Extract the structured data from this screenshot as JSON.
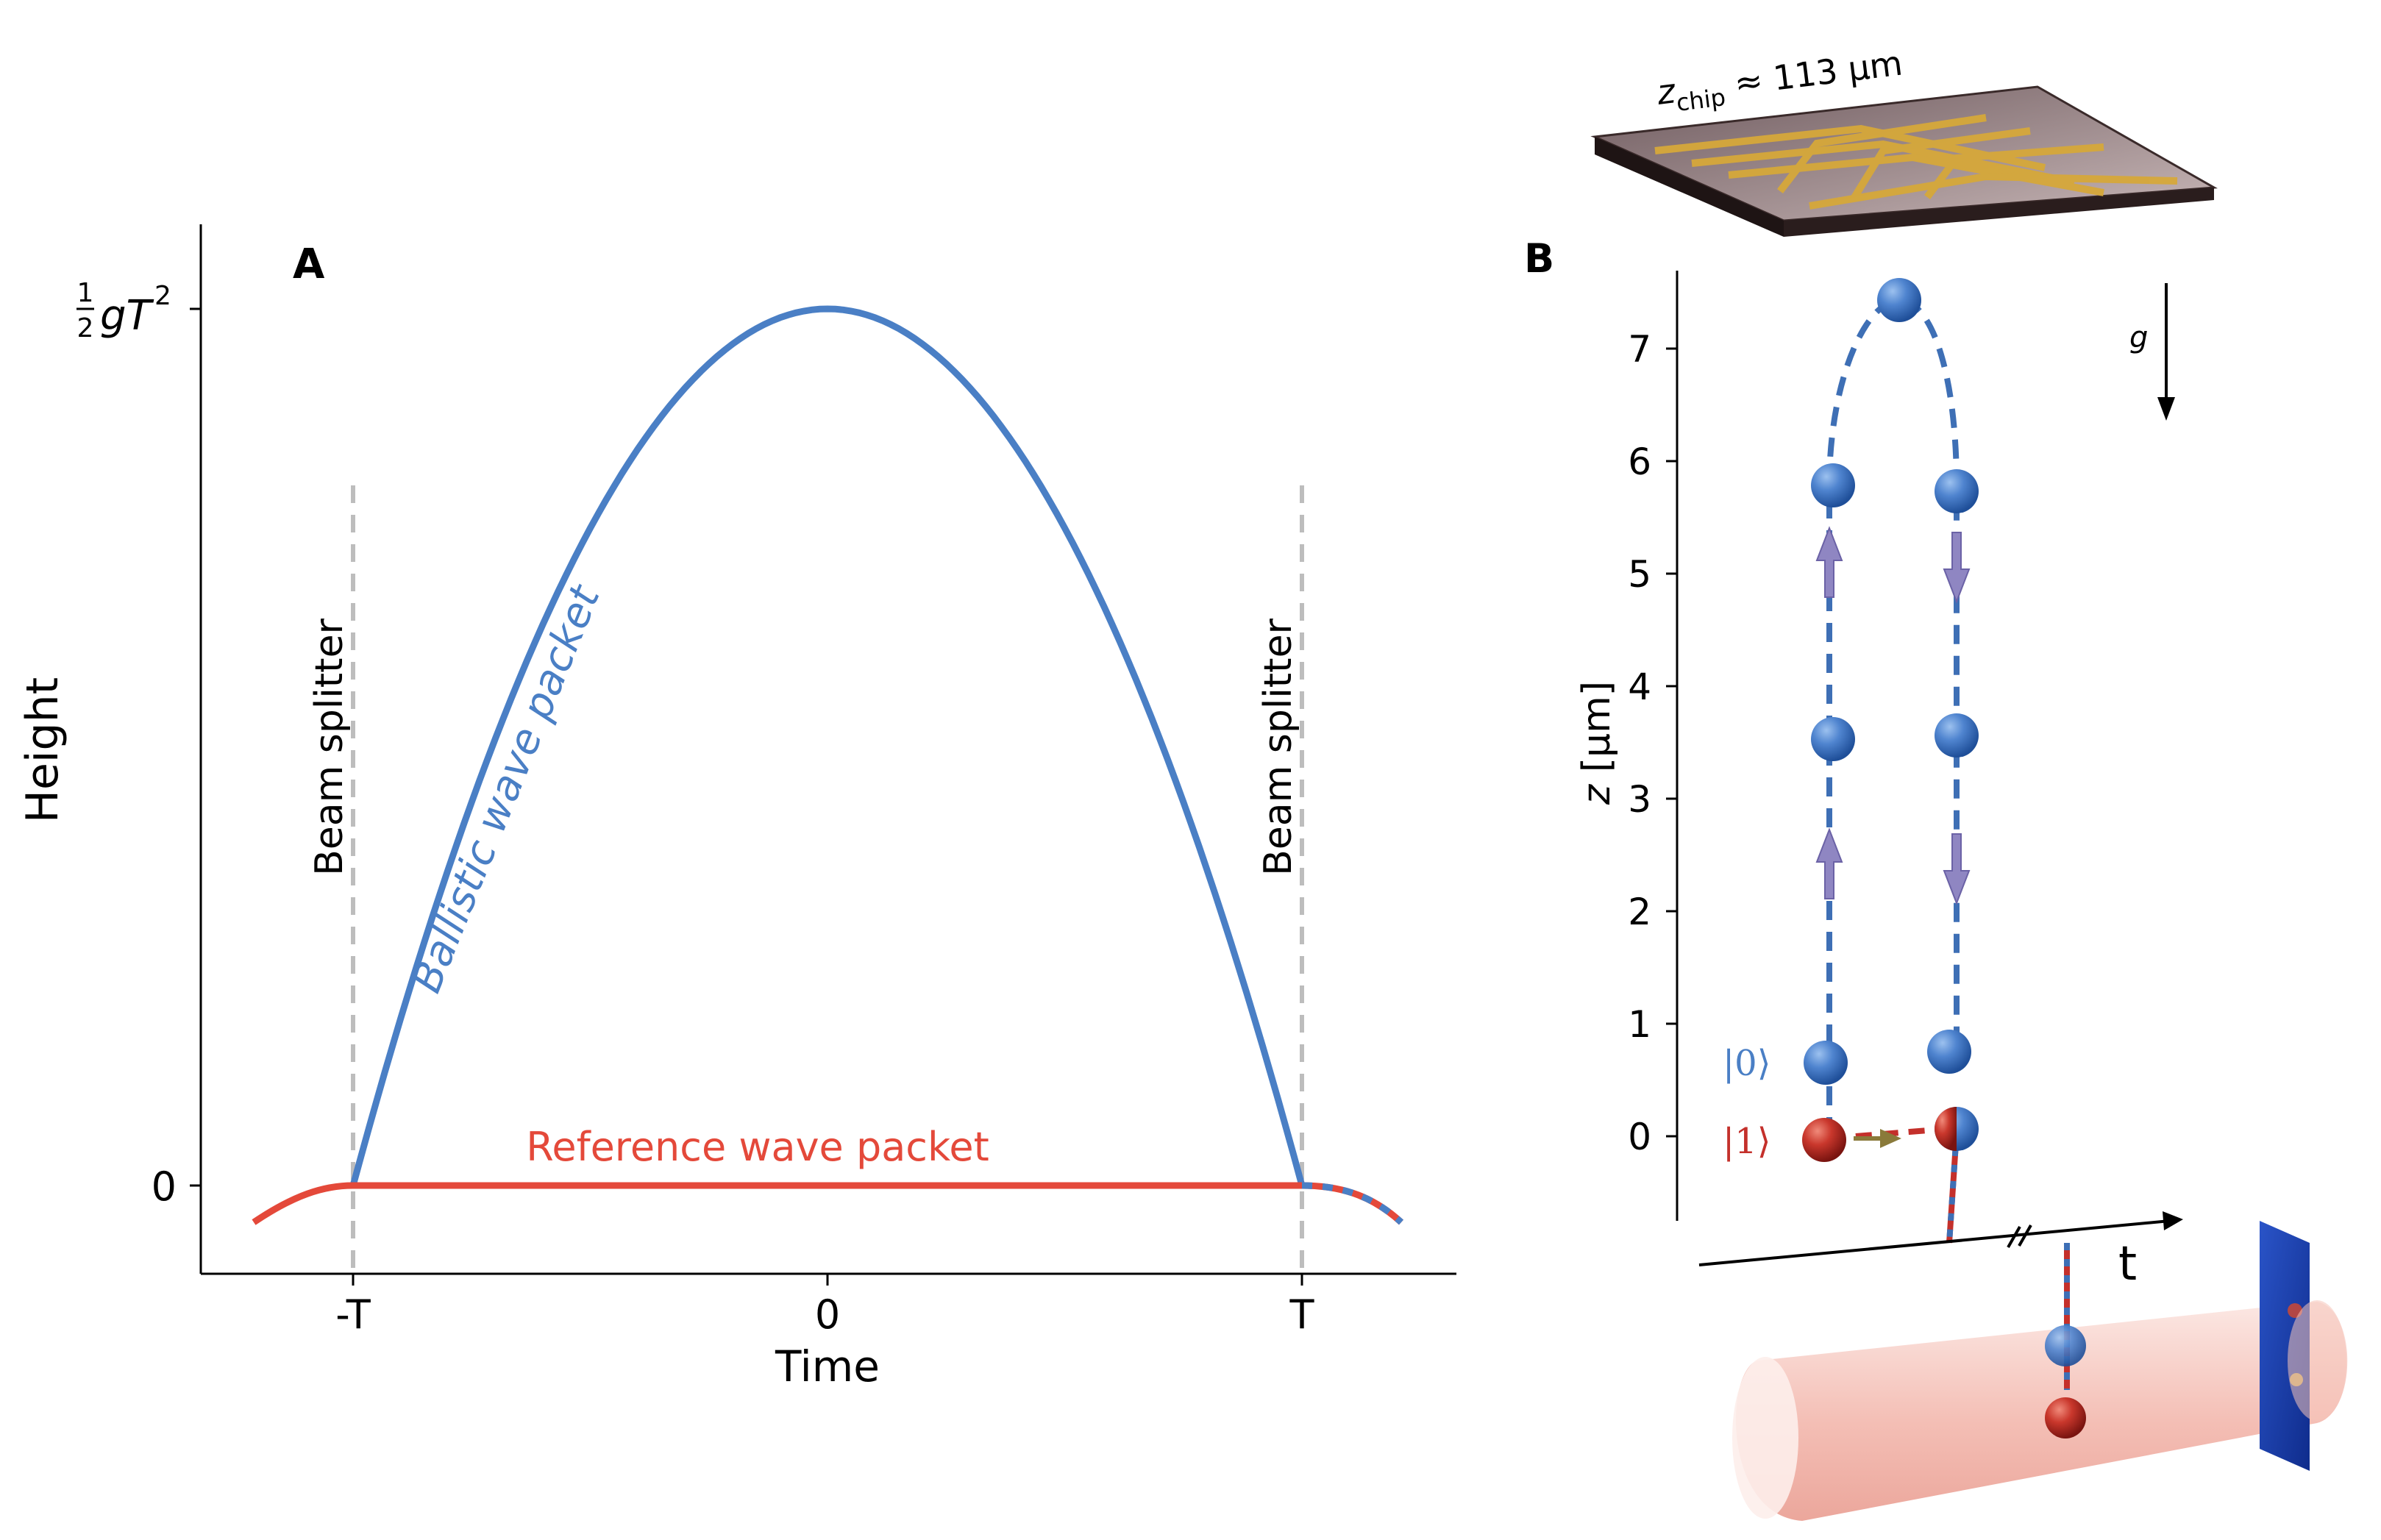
{
  "panel_a": {
    "panel_label": "A",
    "ylabel": "Height",
    "xlabel": "Time",
    "y_tick_top": {
      "frac_num": "1",
      "frac_den": "2",
      "text": "gT",
      "sup": "2"
    },
    "y_tick_zero": "0",
    "x_ticks": [
      "-T",
      "0",
      "T"
    ],
    "left_marker": "Beam splitter",
    "right_marker": "Beam splitter",
    "ballistic_label": "Ballistic wave packet",
    "reference_label": "Reference wave packet",
    "colors": {
      "ballistic": "#4a7fc5",
      "reference": "#e4493a",
      "marker": "#bdbdbd"
    }
  },
  "panel_b": {
    "panel_label": "B",
    "chip_label_main": "z",
    "chip_label_sub": "chip",
    "chip_label_rest": " ≈ 113 μm",
    "ylabel_var": "z",
    "ylabel_unit": " [μm]",
    "y_ticks": [
      "0",
      "1",
      "2",
      "3",
      "4",
      "5",
      "6",
      "7"
    ],
    "gravity_label": "g",
    "time_axis_label": "t",
    "state_0": "|0⟩",
    "state_1": "|1⟩",
    "colors": {
      "state0": "#4a7fc5",
      "state1": "#c4302b",
      "arrow": "#8f86c2",
      "transfer": "#8a7a3a"
    }
  },
  "chart_data": {
    "type": "line",
    "title": "",
    "xlabel": "Time",
    "ylabel": "Height",
    "x_ticks": [
      "-T",
      "0",
      "T"
    ],
    "y_ticks": [
      "0",
      "½gT²"
    ],
    "series": [
      {
        "name": "Ballistic wave packet",
        "shape": "parabola from (-T, 0) through (0, ½gT²) to (T, 0)"
      },
      {
        "name": "Reference wave packet",
        "shape": "constant 0 from -T to T"
      }
    ]
  }
}
